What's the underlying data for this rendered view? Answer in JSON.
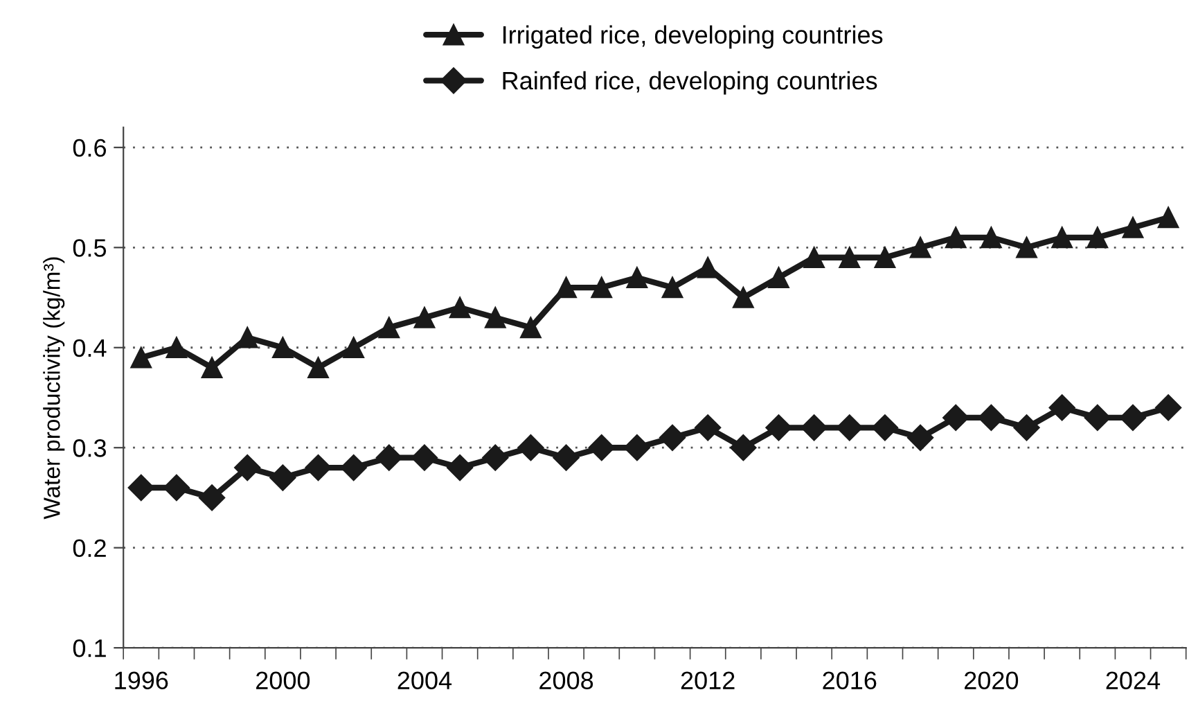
{
  "chart_data": {
    "type": "line",
    "ylabel": "Water productivity (kg/m³)",
    "categories": [
      "1996",
      null,
      null,
      null,
      "2000",
      null,
      null,
      null,
      "2004",
      null,
      null,
      null,
      "2008",
      null,
      null,
      null,
      "2012",
      null,
      null,
      null,
      "2016",
      null,
      null,
      null,
      "2020",
      null,
      null,
      null,
      "2024",
      null
    ],
    "series": [
      {
        "name": "Irrigated rice, developing countries",
        "color": "#1a1a1a",
        "marker": "triangle",
        "values": [
          0.39,
          0.4,
          0.38,
          0.41,
          0.4,
          0.38,
          0.4,
          0.42,
          0.43,
          0.44,
          0.43,
          0.42,
          0.46,
          0.46,
          0.47,
          0.46,
          0.48,
          0.45,
          0.47,
          0.49,
          0.49,
          0.49,
          0.5,
          0.51,
          0.51,
          0.5,
          0.51,
          0.51,
          0.52,
          0.53
        ]
      },
      {
        "name": "Rainfed rice, developing countries",
        "color": "#1a1a1a",
        "marker": "diamond",
        "values": [
          0.26,
          0.26,
          0.25,
          0.28,
          0.27,
          0.28,
          0.28,
          0.29,
          0.29,
          0.28,
          0.29,
          0.3,
          0.29,
          0.3,
          0.3,
          0.31,
          0.32,
          0.3,
          0.32,
          0.32,
          0.32,
          0.32,
          0.31,
          0.33,
          0.33,
          0.32,
          0.34,
          0.33,
          0.33,
          0.34
        ]
      }
    ],
    "ylim": [
      0.1,
      0.62
    ],
    "yticks": [
      0.1,
      0.2,
      0.3,
      0.4,
      0.5,
      0.6
    ],
    "grid": "y",
    "legend": "top",
    "line_style": "solid"
  }
}
